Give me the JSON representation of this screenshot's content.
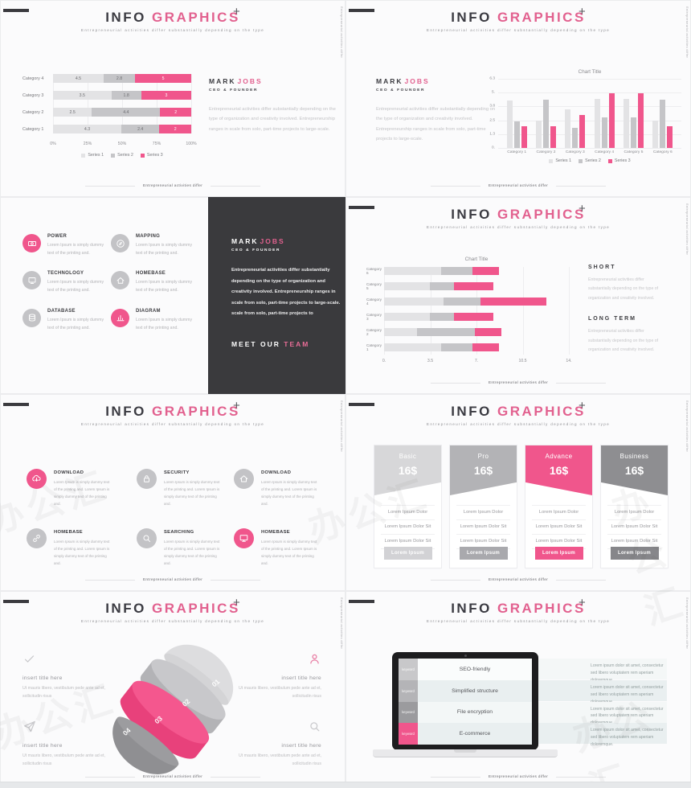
{
  "common": {
    "brand_dark": "INFO",
    "brand_pink": "GRAPHICS",
    "plus_icon": "+",
    "subtitle": "Entrepreneurial activities differ substantially depending on the type",
    "side_text": "Entrepreneurial activities differ",
    "footer_text": "Entrepreneurial activities differ",
    "watermark": "办公汇",
    "accent": "#f0568c",
    "series_colors": [
      "#e3e3e5",
      "#c5c5c8",
      "#f0568c"
    ]
  },
  "person": {
    "name_first": "MARK",
    "name_last": "JOBS",
    "role": "CEO & FOUNDER"
  },
  "slides": {
    "s1": {
      "bio": "Entrepreneurial activities differ substantially depending on the type of organization and creativity involved. Entrepreneurship ranges in scale from solo, part-time projects to large-scale.",
      "chart": {
        "type": "stacked-bar-horizontal-percent",
        "categories": [
          "Category 4",
          "Category 3",
          "Category 2",
          "Category 1"
        ],
        "rows": [
          [
            4.5,
            2.8,
            5
          ],
          [
            3.5,
            1.8,
            3
          ],
          [
            2.5,
            4.4,
            2
          ],
          [
            4.3,
            2.4,
            2
          ]
        ],
        "x_ticks": [
          "0%",
          "25%",
          "50%",
          "75%",
          "100%"
        ],
        "legend": [
          "Series 1",
          "Series 2",
          "Series 3"
        ]
      }
    },
    "s2": {
      "bio": "Entrepreneurial activities differ substantially depending on the type of organization and creativity involved. Entrepreneurship ranges in scale from solo, part-time projects to large-scale.",
      "chart": {
        "type": "grouped-bar-vertical",
        "title": "Chart Title",
        "y_ticks": [
          "6.3",
          "5.",
          "3.8",
          "2.5",
          "1.3",
          "0."
        ],
        "ymax": 6.3,
        "categories": [
          "Category 1",
          "Category 2",
          "Category 3",
          "Category 4",
          "Category 5",
          "Category 6"
        ],
        "series": [
          {
            "name": "Series 1",
            "values": [
              4.3,
              2.5,
              3.5,
              4.5,
              4.5,
              2.5
            ]
          },
          {
            "name": "Series 2",
            "values": [
              2.4,
              4.4,
              1.8,
              2.8,
              2.8,
              4.4
            ]
          },
          {
            "name": "Series 3",
            "values": [
              2,
              2,
              3,
              5,
              5,
              2
            ]
          }
        ],
        "legend": [
          "Series 1",
          "Series 2",
          "Series 3"
        ]
      }
    },
    "s3": {
      "item_text": "Lorem Ipsum is simply dummy text of the printing and.",
      "items": [
        {
          "title": "POWER",
          "icon": "banknote",
          "accent": true
        },
        {
          "title": "MAPPING",
          "icon": "compass",
          "accent": false
        },
        {
          "title": "TECHNOLOGY",
          "icon": "monitor",
          "accent": false
        },
        {
          "title": "HOMEBASE",
          "icon": "home",
          "accent": false
        },
        {
          "title": "DATABASE",
          "icon": "database",
          "accent": false
        },
        {
          "title": "DIAGRAM",
          "icon": "bar-chart",
          "accent": true
        }
      ],
      "bio": "Entrepreneurial activities differ substantially depending on the type of organization and creativity involved. Entrepreneurship ranges in scale from solo, part-time projects to large-scale. scale from solo, part-time projects to",
      "meet_first": "MEET OUR",
      "meet_last": "TEAM"
    },
    "s4": {
      "short_title": "SHORT",
      "long_title": "LONG TERM",
      "paragraph": "Entrepreneurial activities differ substantially depending on the type of organization and creativity involved.",
      "chart": {
        "type": "stacked-bar-horizontal",
        "title": "Chart Title",
        "categories": [
          "Category 6",
          "Category 5",
          "Category 4",
          "Category 3",
          "Category 2",
          "Category 1"
        ],
        "rows": [
          [
            4.3,
            2.4,
            2
          ],
          [
            3.5,
            1.8,
            3
          ],
          [
            4.5,
            2.8,
            5
          ],
          [
            3.5,
            1.8,
            3
          ],
          [
            2.5,
            4.4,
            2
          ],
          [
            4.3,
            2.4,
            2
          ]
        ],
        "x_ticks": [
          "0.",
          "3.5",
          "7.",
          "10.5",
          "14."
        ],
        "xmax": 14
      }
    },
    "s5": {
      "item_text": "Lorem Ipsum is simply dummy text of the printing and. Lorem Ipsum is simply dummy text of the printing and.",
      "items": [
        {
          "title": "DOWNLOAD",
          "icon": "cloud-download",
          "accent": true
        },
        {
          "title": "SECURITY",
          "icon": "lock",
          "accent": false
        },
        {
          "title": "DOWNLOAD",
          "icon": "home",
          "accent": false
        },
        {
          "title": "HOMEBASE",
          "icon": "link",
          "accent": false
        },
        {
          "title": "SEARCHING",
          "icon": "magnifier",
          "accent": false
        },
        {
          "title": "HOMEBASE",
          "icon": "monitor",
          "accent": true
        }
      ]
    },
    "s6": {
      "rows": [
        "Lorem Ipsum Dolor",
        "Lorem Ipsum Dolor Sit",
        "Lorem Ipsum Dolor Sit"
      ],
      "button_label": "Lorem Ipsum",
      "plans": [
        {
          "name": "Basic",
          "price": "16$",
          "color": "#d7d7d9",
          "btn_color": "#d2d2d5",
          "slope": "up"
        },
        {
          "name": "Pro",
          "price": "16$",
          "color": "#b3b3b6",
          "btn_color": "#a9a9ad",
          "slope": "up"
        },
        {
          "name": "Advance",
          "price": "16$",
          "color": "#f0568c",
          "btn_color": "#f0568c",
          "slope": "down"
        },
        {
          "name": "Business",
          "price": "16$",
          "color": "#8e8e91",
          "btn_color": "#86868a",
          "slope": "down"
        }
      ]
    },
    "s7": {
      "segments": [
        "01",
        "02",
        "03",
        "04"
      ],
      "corner_title": "insert title here",
      "corner_text": "Ut mauris libero, vestibulum pede ante ad et, sollicitudin risus",
      "corners": [
        {
          "icon": "check",
          "accent": false
        },
        {
          "icon": "person",
          "accent": true
        },
        {
          "icon": "plane",
          "accent": false
        },
        {
          "icon": "magnifier",
          "accent": false
        }
      ]
    },
    "s8": {
      "keyword_label": "keyword",
      "rows": [
        {
          "title": "SEO-friendly"
        },
        {
          "title": "Simplified structure"
        },
        {
          "title": "File encryption"
        },
        {
          "title": "E-commerce"
        }
      ],
      "chip_colors": [
        "#c8c8ca",
        "#b4b4b7",
        "#9b9b9e",
        "#f0568c"
      ],
      "row_colors": [
        "#fafcfc",
        "#e9eff0",
        "#f3f7f7",
        "#e9eff0"
      ],
      "band_colors": [
        "#f4f7f7",
        "#e9eff0",
        "#f4f7f7",
        "#e9eff0"
      ],
      "right_text": "Lorem ipsum dolor sit amet, consectetur sed libero voluptatem rem aperiam doloremque."
    }
  }
}
